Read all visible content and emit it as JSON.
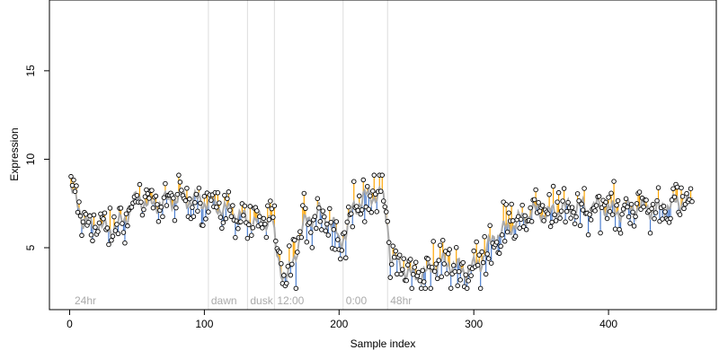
{
  "chart_data": {
    "type": "scatter",
    "xlabel": "Sample index",
    "ylabel": "Expression",
    "xlim": [
      -15,
      480
    ],
    "ylim": [
      1.5,
      19
    ],
    "x_ticks": [
      0,
      100,
      200,
      300,
      400
    ],
    "y_ticks": [
      5,
      10,
      15
    ],
    "grid": false,
    "legend": "none",
    "colors": {
      "points": "#000000",
      "smooth_line": "#aaaaaa",
      "above_segment": "#ffa500",
      "below_segment": "#4d7fd0",
      "event_line": "#dddddd",
      "event_label": "#aaaaaa"
    },
    "events": [
      {
        "x": 103,
        "label": "dawn"
      },
      {
        "x": 132,
        "label": "dusk"
      },
      {
        "x": 152,
        "label": "12:00"
      },
      {
        "x": 203,
        "label": "0:00"
      },
      {
        "x": 236,
        "label": "48hr"
      }
    ],
    "corner_label": {
      "x": 3,
      "label": "24hr"
    },
    "anchors": [
      [
        0,
        8.3
      ],
      [
        6,
        7.6
      ],
      [
        10,
        6.5
      ],
      [
        20,
        6.3
      ],
      [
        30,
        6.0
      ],
      [
        40,
        6.5
      ],
      [
        50,
        7.8
      ],
      [
        60,
        7.4
      ],
      [
        70,
        7.6
      ],
      [
        80,
        7.8
      ],
      [
        90,
        7.7
      ],
      [
        100,
        7.6
      ],
      [
        110,
        7.3
      ],
      [
        120,
        7.0
      ],
      [
        130,
        6.6
      ],
      [
        140,
        6.4
      ],
      [
        150,
        6.7
      ],
      [
        153,
        5.0
      ],
      [
        158,
        3.6
      ],
      [
        162,
        3.3
      ],
      [
        168,
        4.8
      ],
      [
        175,
        6.5
      ],
      [
        185,
        7.0
      ],
      [
        195,
        6.4
      ],
      [
        200,
        5.4
      ],
      [
        205,
        5.8
      ],
      [
        210,
        7.2
      ],
      [
        220,
        7.9
      ],
      [
        232,
        8.0
      ],
      [
        236,
        6.5
      ],
      [
        238,
        4.5
      ],
      [
        245,
        4.0
      ],
      [
        255,
        3.4
      ],
      [
        265,
        3.6
      ],
      [
        275,
        4.2
      ],
      [
        285,
        4.0
      ],
      [
        295,
        3.6
      ],
      [
        305,
        4.2
      ],
      [
        315,
        5.6
      ],
      [
        325,
        6.1
      ],
      [
        335,
        6.6
      ],
      [
        345,
        7.1
      ],
      [
        355,
        6.9
      ],
      [
        365,
        7.2
      ],
      [
        375,
        7.3
      ],
      [
        385,
        7.2
      ],
      [
        395,
        7.4
      ],
      [
        405,
        7.0
      ],
      [
        415,
        7.2
      ],
      [
        425,
        7.3
      ],
      [
        435,
        7.1
      ],
      [
        445,
        7.4
      ],
      [
        455,
        7.6
      ],
      [
        462,
        7.5
      ]
    ],
    "n_samples": 462
  }
}
